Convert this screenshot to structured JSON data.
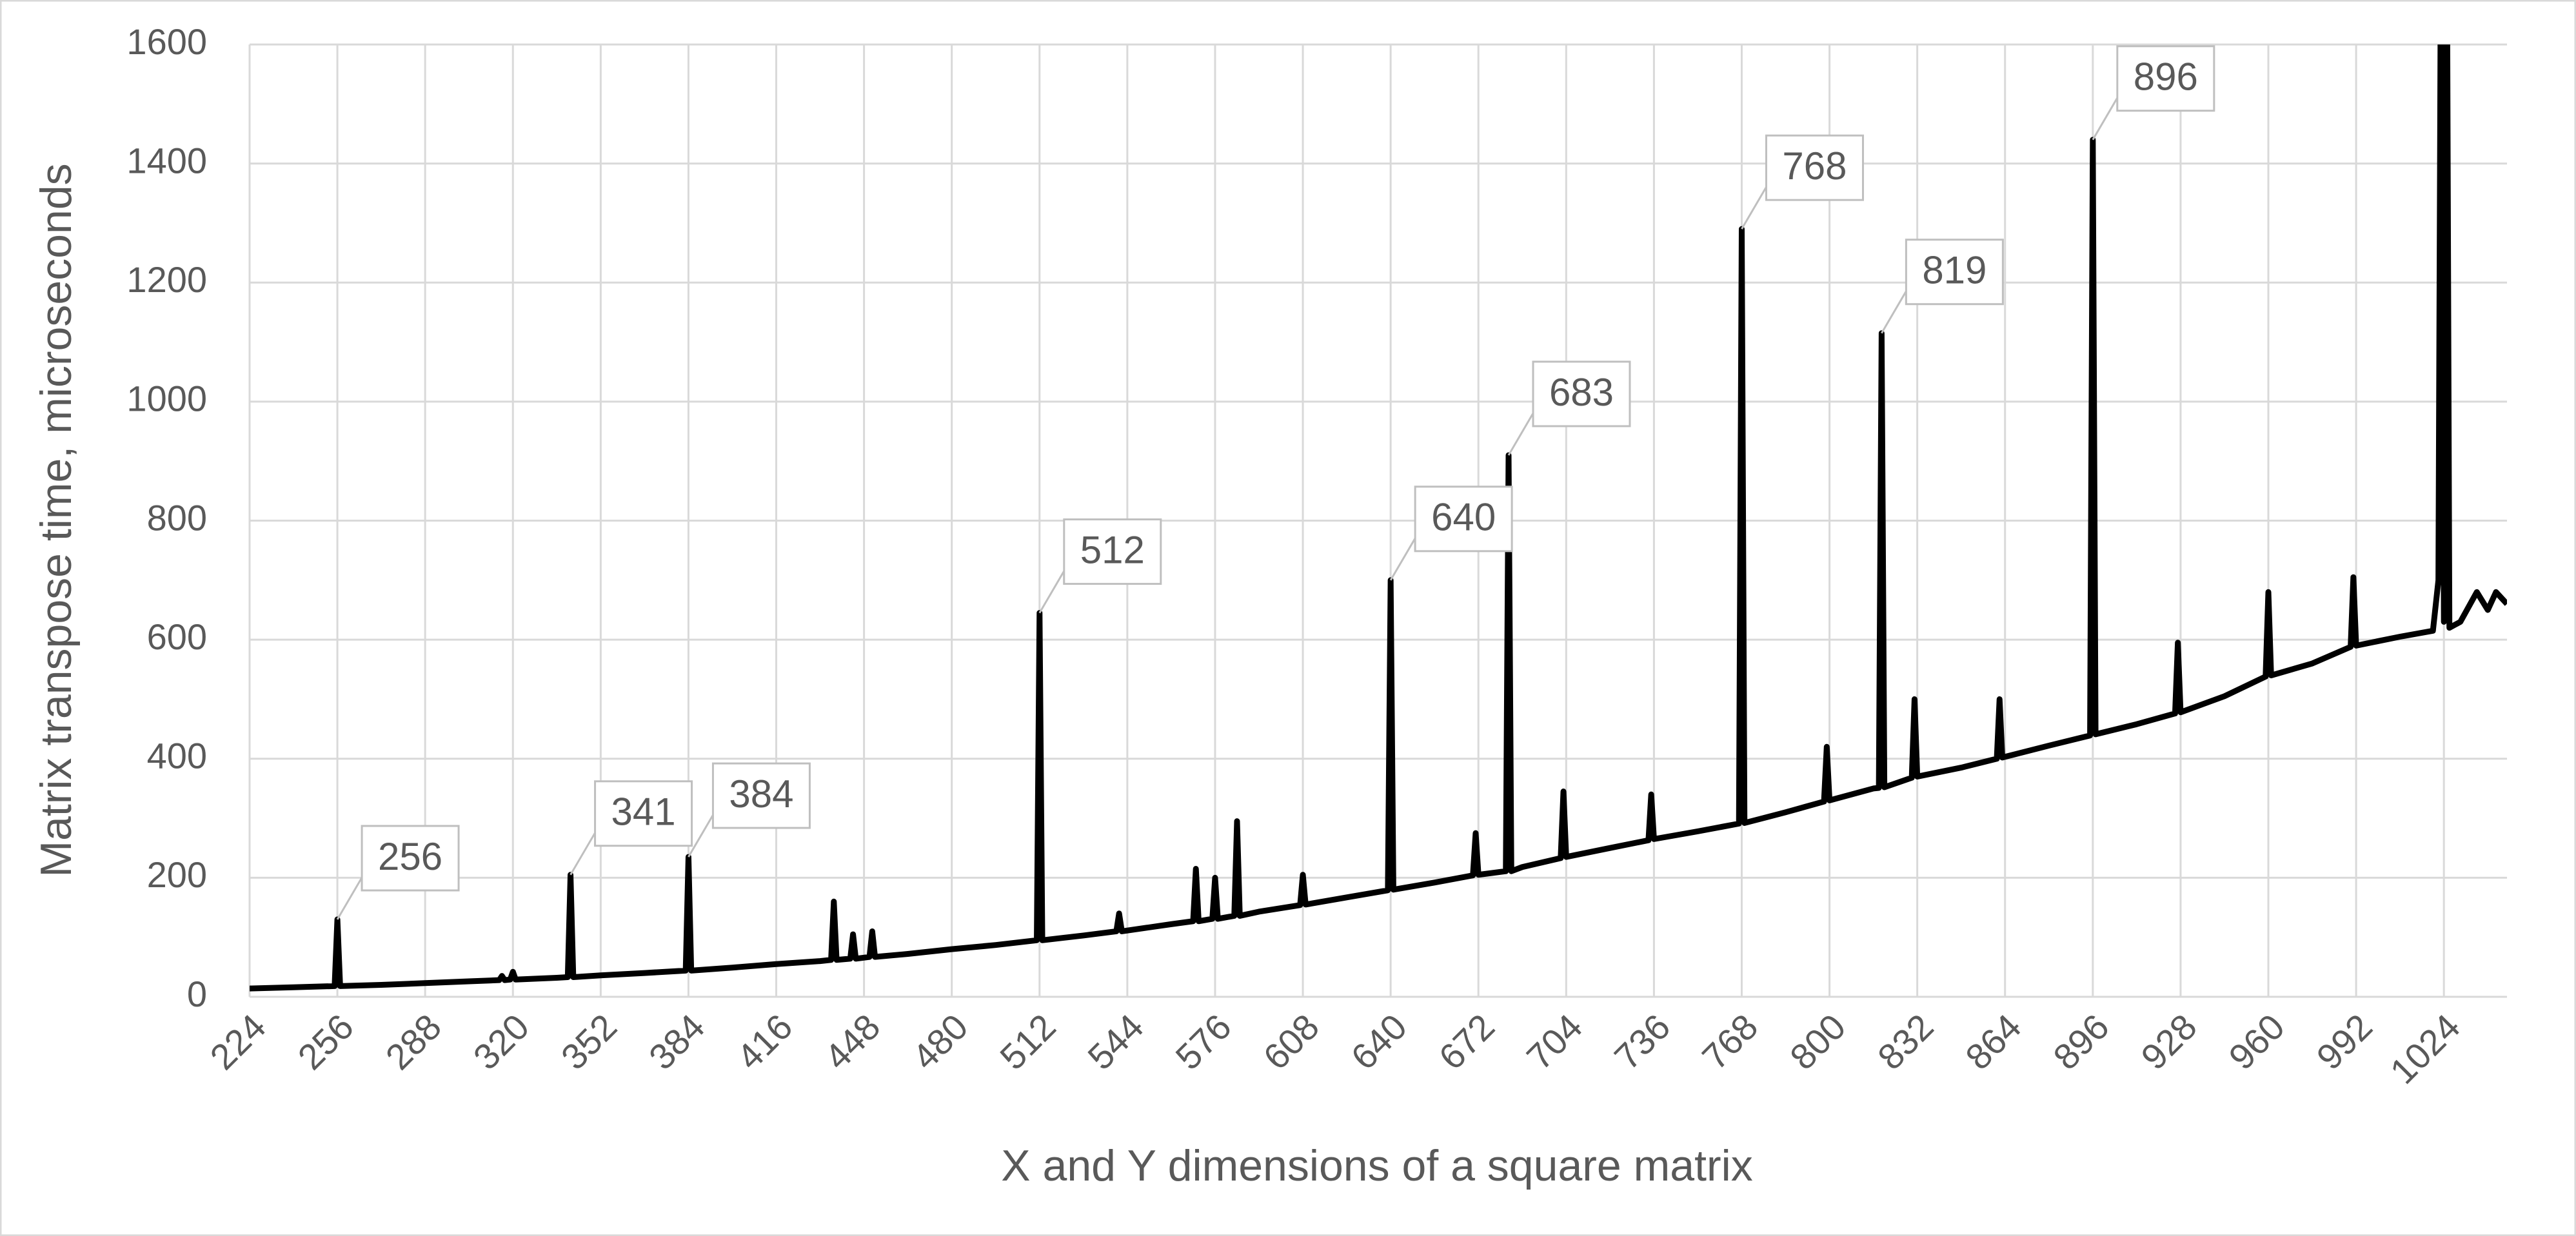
{
  "chart_data": {
    "type": "line",
    "x_label": "X and Y dimensions of a square matrix",
    "y_label": "Matrix transpose time, microseconds",
    "xlim": [
      224,
      1047
    ],
    "ylim": [
      0,
      1600
    ],
    "xticks": [
      224,
      256,
      288,
      320,
      352,
      384,
      416,
      448,
      480,
      512,
      544,
      576,
      608,
      640,
      672,
      704,
      736,
      768,
      800,
      832,
      864,
      896,
      928,
      960,
      992,
      1024
    ],
    "yticks": [
      0,
      200,
      400,
      600,
      800,
      1000,
      1200,
      1400,
      1600
    ],
    "grid": true,
    "x": [
      224,
      240,
      255,
      256,
      257,
      272,
      288,
      304,
      315,
      316,
      317,
      319,
      320,
      321,
      336,
      340,
      341,
      342,
      352,
      368,
      383,
      384,
      385,
      400,
      416,
      432,
      436,
      437,
      438,
      443,
      444,
      445,
      450,
      451,
      452,
      464,
      480,
      496,
      511,
      512,
      513,
      528,
      540,
      541,
      542,
      560,
      568,
      569,
      570,
      575,
      576,
      577,
      583,
      584,
      585,
      592,
      607,
      608,
      609,
      624,
      639,
      640,
      641,
      656,
      670,
      671,
      672,
      682,
      683,
      684,
      688,
      702,
      703,
      704,
      720,
      734,
      735,
      736,
      752,
      767,
      768,
      769,
      784,
      798,
      799,
      800,
      816,
      818,
      819,
      820,
      830,
      831,
      832,
      848,
      861,
      862,
      863,
      880,
      895,
      896,
      897,
      912,
      926,
      927,
      928,
      944,
      959,
      960,
      961,
      976,
      990,
      991,
      992,
      1008,
      1020,
      1022,
      1023,
      1024,
      1025,
      1026,
      1030,
      1036,
      1040,
      1043,
      1047
    ],
    "series": [
      {
        "name": "Transpose time",
        "color": "#000000",
        "values": [
          14,
          16,
          18,
          130,
          18,
          20,
          23,
          26,
          28,
          35,
          28,
          29,
          42,
          29,
          32,
          33,
          205,
          33,
          36,
          40,
          44,
          235,
          44,
          49,
          55,
          60,
          62,
          160,
          62,
          64,
          105,
          64,
          67,
          110,
          67,
          72,
          80,
          87,
          95,
          645,
          95,
          103,
          110,
          140,
          110,
          122,
          127,
          215,
          127,
          131,
          200,
          131,
          136,
          295,
          136,
          143,
          154,
          205,
          155,
          167,
          179,
          700,
          180,
          192,
          204,
          275,
          205,
          211,
          910,
          211,
          218,
          233,
          345,
          235,
          250,
          263,
          340,
          265,
          278,
          291,
          1290,
          292,
          310,
          328,
          420,
          330,
          350,
          351,
          1115,
          352,
          368,
          500,
          370,
          385,
          400,
          500,
          402,
          422,
          439,
          1440,
          441,
          458,
          476,
          595,
          478,
          505,
          538,
          680,
          540,
          560,
          588,
          705,
          590,
          605,
          615,
          700,
          1900,
          630,
          1900,
          620,
          630,
          680,
          650,
          680,
          660
        ]
      }
    ],
    "annotations": [
      {
        "text": "256",
        "x": 256,
        "y": 130
      },
      {
        "text": "341",
        "x": 341,
        "y": 205
      },
      {
        "text": "384",
        "x": 384,
        "y": 235
      },
      {
        "text": "512",
        "x": 512,
        "y": 645
      },
      {
        "text": "640",
        "x": 640,
        "y": 700
      },
      {
        "text": "683",
        "x": 683,
        "y": 910
      },
      {
        "text": "768",
        "x": 768,
        "y": 1290
      },
      {
        "text": "819",
        "x": 819,
        "y": 1115
      },
      {
        "text": "896",
        "x": 896,
        "y": 1440
      }
    ]
  }
}
